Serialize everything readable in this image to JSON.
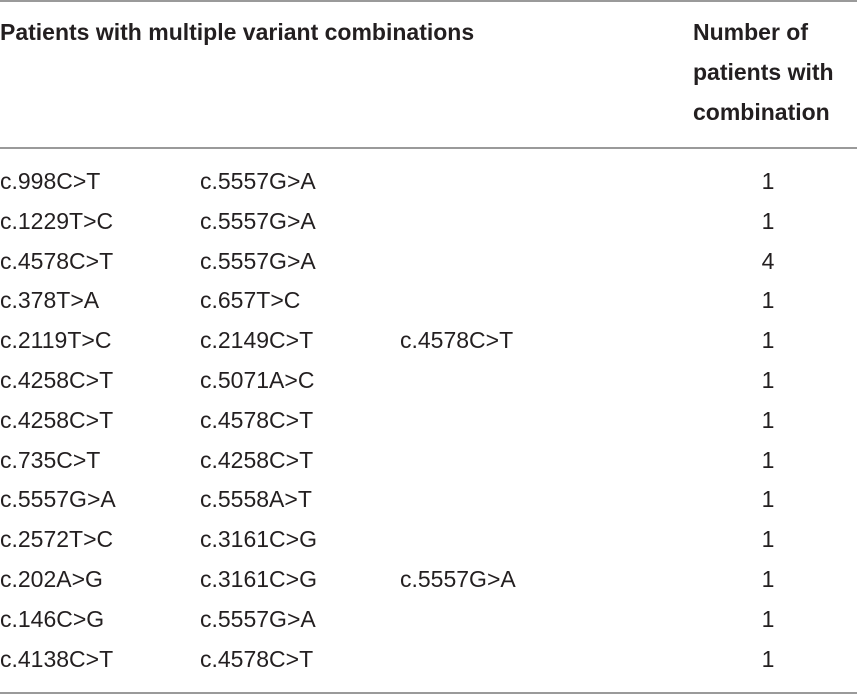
{
  "table": {
    "header": {
      "variants": "Patients with multiple variant combinations",
      "count": "Number of patients with combination"
    },
    "rows": [
      {
        "variants": [
          "c.998C>T",
          "c.5557G>A"
        ],
        "count": 1
      },
      {
        "variants": [
          "c.1229T>C",
          "c.5557G>A"
        ],
        "count": 1
      },
      {
        "variants": [
          "c.4578C>T",
          "c.5557G>A"
        ],
        "count": 4
      },
      {
        "variants": [
          "c.378T>A",
          "c.657T>C"
        ],
        "count": 1
      },
      {
        "variants": [
          "c.2119T>C",
          "c.2149C>T",
          "c.4578C>T"
        ],
        "count": 1
      },
      {
        "variants": [
          "c.4258C>T",
          "c.5071A>C"
        ],
        "count": 1
      },
      {
        "variants": [
          "c.4258C>T",
          "c.4578C>T"
        ],
        "count": 1
      },
      {
        "variants": [
          "c.735C>T",
          "c.4258C>T"
        ],
        "count": 1
      },
      {
        "variants": [
          "c.5557G>A",
          "c.5558A>T"
        ],
        "count": 1
      },
      {
        "variants": [
          "c.2572T>C",
          "c.3161C>G"
        ],
        "count": 1
      },
      {
        "variants": [
          "c.202A>G",
          "c.3161C>G",
          "c.5557G>A"
        ],
        "count": 1
      },
      {
        "variants": [
          "c.146C>G",
          "c.5557G>A"
        ],
        "count": 1
      },
      {
        "variants": [
          "c.4138C>T",
          "c.4578C>T"
        ],
        "count": 1
      }
    ]
  }
}
